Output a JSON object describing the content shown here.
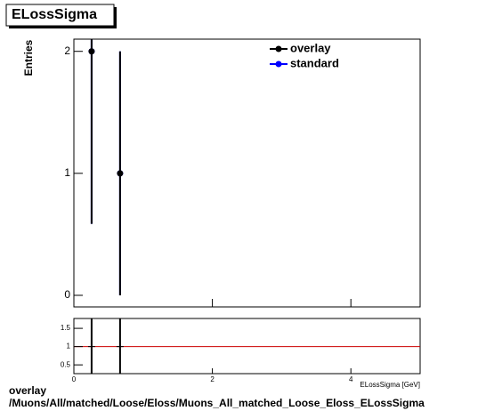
{
  "title": "ELossSigma",
  "chart_data": [
    {
      "type": "errorbar",
      "y_label": "Entries",
      "xlim": [
        0,
        5
      ],
      "ylim": [
        -0.095,
        2.1
      ],
      "yticks": [
        0,
        1,
        2
      ],
      "series": [
        {
          "name": "standard",
          "color": "#0000ff",
          "x": [
            0.256,
            0.667
          ],
          "values": [
            2,
            1
          ],
          "errors": [
            1.414,
            1
          ]
        },
        {
          "name": "overlay",
          "color": "#000000",
          "x": [
            0.256,
            0.667
          ],
          "values": [
            2,
            1
          ],
          "errors": [
            1.414,
            1
          ]
        }
      ]
    },
    {
      "type": "ratio",
      "x_label": "ELossSigma [GeV]",
      "xlim": [
        0,
        5
      ],
      "xticks": [
        0,
        2,
        4
      ],
      "ylim": [
        0.26,
        1.77
      ],
      "yticks": [
        0.5,
        1,
        1.5
      ],
      "reference": 1,
      "reference_color": "#cc0000",
      "color": "#000000",
      "x": [
        0.256,
        0.667
      ],
      "values": [
        1,
        1
      ],
      "errors": [
        1.414,
        1.414
      ]
    }
  ],
  "footer": {
    "line1": "overlay",
    "line2": "/Muons/All/matched/Loose/Eloss/Muons_All_matched_Loose_Eloss_ELossSigma"
  }
}
